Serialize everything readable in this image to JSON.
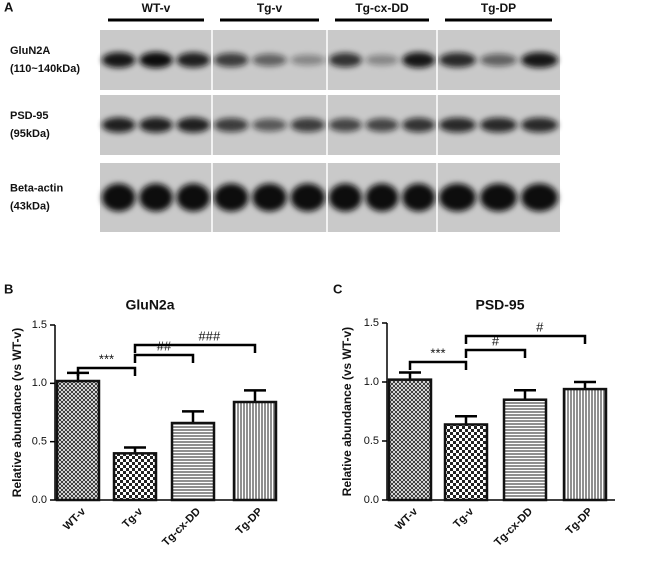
{
  "panel_labels": [
    "A",
    "B",
    "C"
  ],
  "blot": {
    "groups": [
      "WT-v",
      "Tg-v",
      "Tg-cx-DD",
      "Tg-DP"
    ],
    "rows": [
      {
        "label": "GluN2A",
        "sublabel": "(110~140kDa)"
      },
      {
        "label": "PSD-95",
        "sublabel": "(95kDa)"
      },
      {
        "label": "Beta-actin",
        "sublabel": "(43kDa)"
      }
    ]
  },
  "chart_data": [
    {
      "type": "bar",
      "title": "GluN2a",
      "y_label": "Relative abundance (vs WT-v)",
      "categories": [
        "WT-v",
        "Tg-v",
        "Tg-cx-DD",
        "Tg-DP"
      ],
      "values": [
        1.02,
        0.4,
        0.66,
        0.84
      ],
      "errors": [
        0.07,
        0.05,
        0.1,
        0.1
      ],
      "patterns": [
        "crosshatch",
        "checker",
        "horizontal",
        "vertical"
      ],
      "color": "#111111",
      "ylim": [
        0,
        1.5
      ],
      "yticks": [
        {
          "value": 0,
          "label": "0.0"
        },
        {
          "value": 0.5,
          "label": "0.5"
        },
        {
          "value": 1,
          "label": "1.0"
        },
        {
          "value": 1.5,
          "label": "1.5"
        }
      ],
      "annotations": [
        "***",
        "##",
        "###"
      ]
    },
    {
      "type": "bar",
      "title": "PSD-95",
      "y_label": "Relative abundance (vs WT-v)",
      "categories": [
        "WT-v",
        "Tg-v",
        "Tg-cx-DD",
        "Tg-DP"
      ],
      "values": [
        1.02,
        0.64,
        0.85,
        0.94
      ],
      "errors": [
        0.06,
        0.07,
        0.08,
        0.06
      ],
      "patterns": [
        "crosshatch",
        "checker",
        "horizontal",
        "vertical"
      ],
      "color": "#111111",
      "ylim": [
        0,
        1.5
      ],
      "yticks": [
        {
          "value": 0,
          "label": "0.0"
        },
        {
          "value": 0.5,
          "label": "0.5"
        },
        {
          "value": 1,
          "label": "1.0"
        },
        {
          "value": 1.5,
          "label": "1.5"
        }
      ],
      "annotations": [
        "***",
        "#",
        "#"
      ]
    }
  ]
}
